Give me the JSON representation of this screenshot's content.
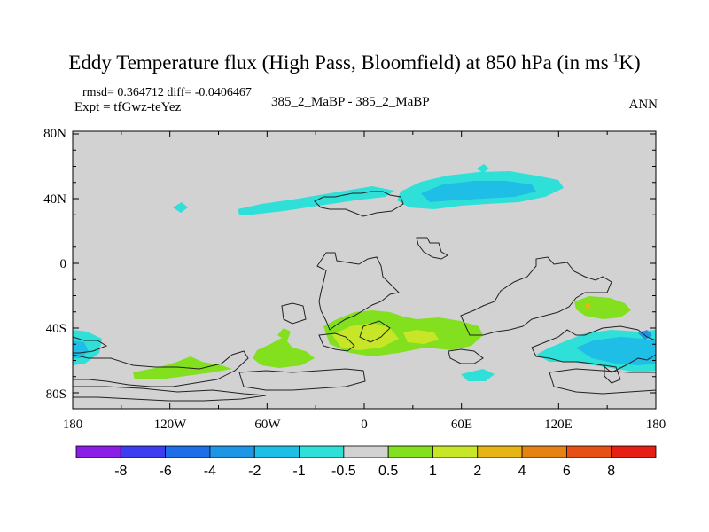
{
  "title_main": "Eddy Temperature flux (High Pass, Bloomfield) at 850 hPa (in ms",
  "title_sup": "-1",
  "title_end": "K)",
  "rmsd_line": "rmsd= 0.364712 diff= -0.0406467",
  "expt_line": "Expt = tfGwz-teYez",
  "case_line": "385_2_MaBP - 385_2_MaBP",
  "period": "ANN",
  "y_ticks": [
    "80N",
    "40N",
    "0",
    "40S",
    "80S"
  ],
  "x_ticks": [
    "180",
    "120W",
    "60W",
    "0",
    "60E",
    "120E",
    "180"
  ],
  "colorbar": {
    "levels": [
      "-8",
      "-6",
      "-4",
      "-2",
      "-1",
      "-0.5",
      "0.5",
      "1",
      "2",
      "4",
      "6",
      "8"
    ],
    "colors": [
      "#8a1ee6",
      "#3c3cf0",
      "#1e6ee6",
      "#1e96e6",
      "#1ebee6",
      "#2ee0d8",
      "#d2d2d2",
      "#82e01e",
      "#c8e628",
      "#e6b414",
      "#e68214",
      "#e65014",
      "#e61e14"
    ]
  },
  "colors": {
    "land_background": "#d2d2d2",
    "coastline": "#222222"
  }
}
